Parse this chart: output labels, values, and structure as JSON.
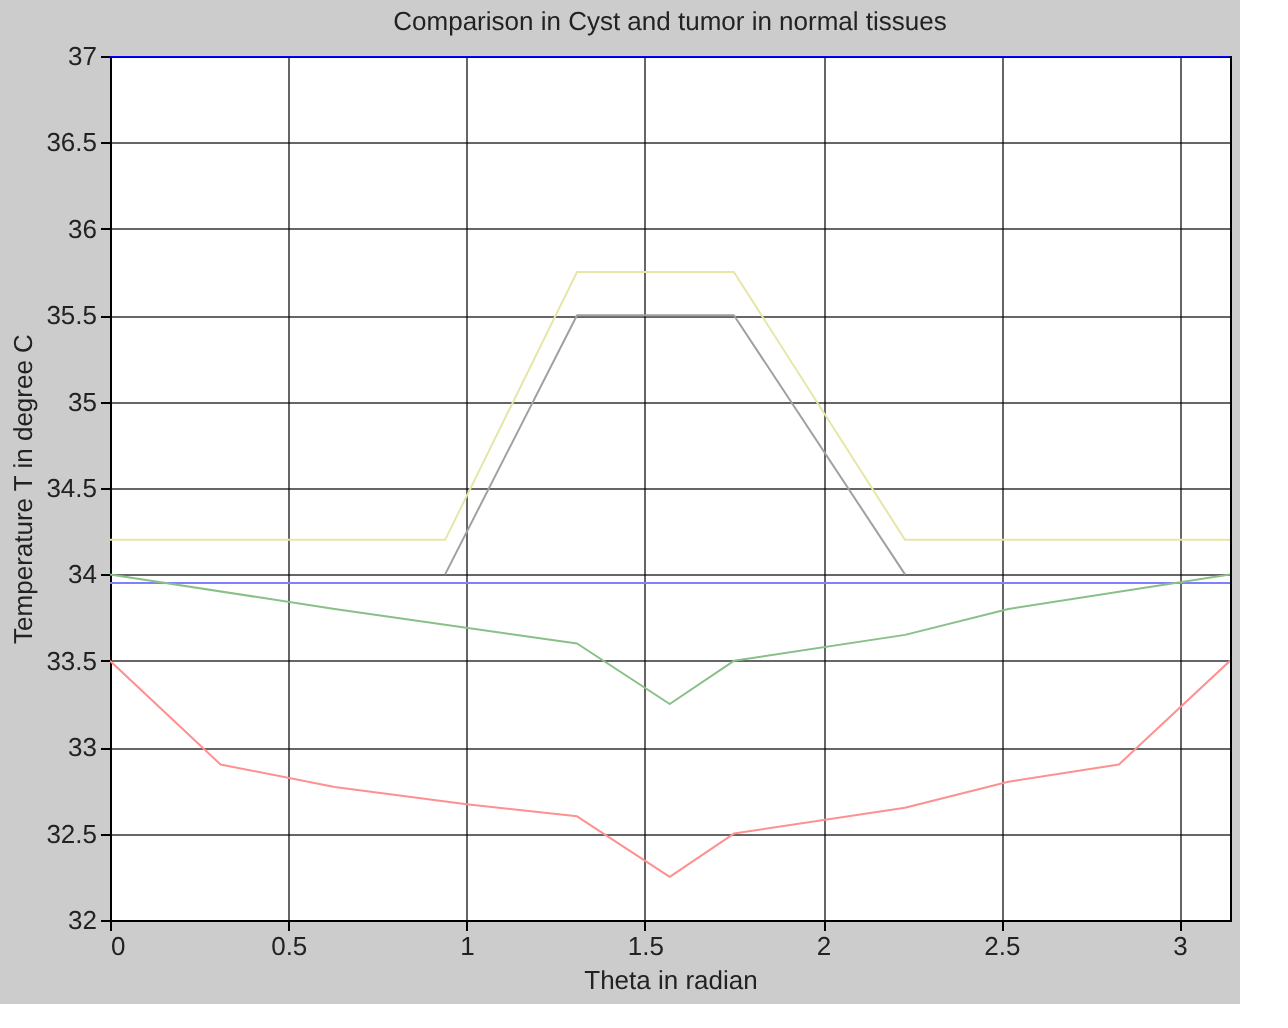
{
  "chart_data": {
    "type": "line",
    "title": "Comparison in Cyst and tumor in normal tissues",
    "xlabel": "Theta in radian",
    "ylabel": "Temperature T in degree C",
    "xlim": [
      0,
      3.1416
    ],
    "xticks": [
      0,
      0.5,
      1,
      1.5,
      2,
      2.5,
      3
    ],
    "ylim": [
      32,
      37
    ],
    "yticks": [
      32,
      32.5,
      33,
      33.5,
      34,
      34.5,
      35,
      35.5,
      36,
      36.5,
      37
    ],
    "grid": true,
    "legend": false,
    "marker": "none",
    "line_style": "solid",
    "series": [
      {
        "color": "#0000ff",
        "x": [
          0,
          3.1416
        ],
        "values": [
          37,
          37
        ]
      },
      {
        "color": "#8080ff",
        "x": [
          0,
          3.1416
        ],
        "values": [
          33.95,
          33.95
        ]
      },
      {
        "color": "#e6e6a8",
        "x": [
          0,
          0.94,
          1.31,
          1.75,
          2.23,
          3.1416
        ],
        "values": [
          34.2,
          34.2,
          35.75,
          35.75,
          34.2,
          34.2
        ]
      },
      {
        "color": "#a0a0a0",
        "x": [
          0.94,
          1.31,
          1.75,
          2.23
        ],
        "values": [
          34,
          35.5,
          35.5,
          34
        ]
      },
      {
        "color": "#88c088",
        "x": [
          0,
          0.63,
          1.31,
          1.57,
          1.75,
          2.23,
          2.52,
          3.1416
        ],
        "values": [
          34,
          33.8,
          33.6,
          33.25,
          33.5,
          33.65,
          33.8,
          34
        ]
      },
      {
        "color": "#ff9090",
        "x": [
          0,
          0.31,
          0.63,
          1.0,
          1.31,
          1.57,
          1.75,
          2.23,
          2.52,
          2.83,
          3.1416
        ],
        "values": [
          33.5,
          32.9,
          32.77,
          32.67,
          32.6,
          32.25,
          32.5,
          32.65,
          32.8,
          32.9,
          33.5
        ]
      }
    ]
  }
}
